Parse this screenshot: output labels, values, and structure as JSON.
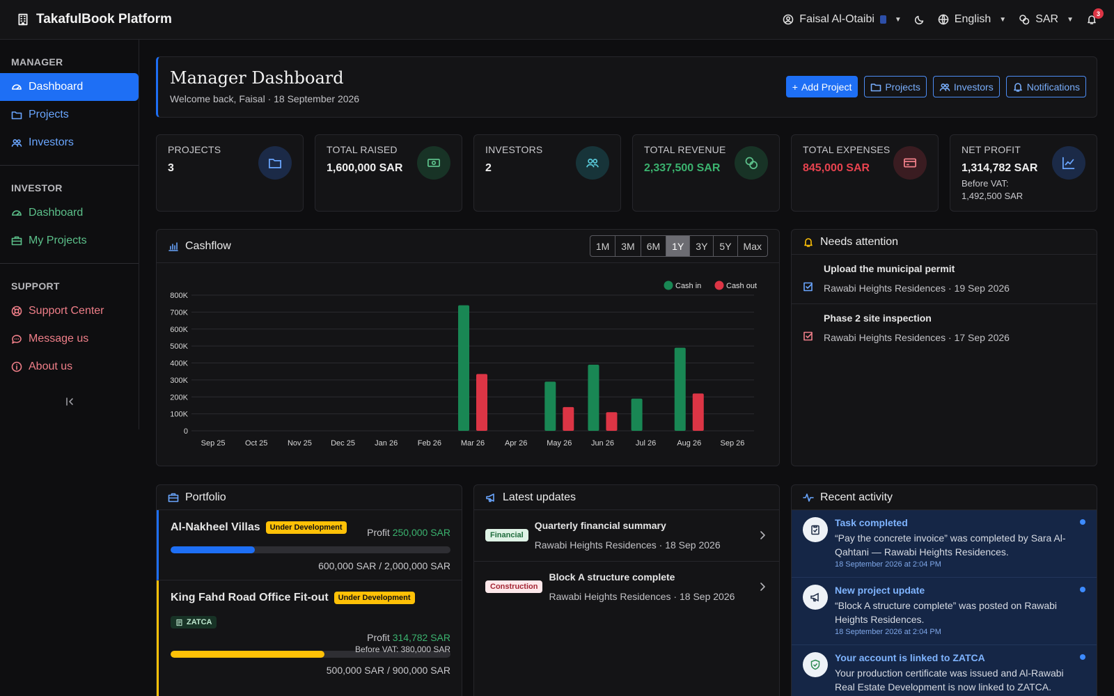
{
  "app": {
    "title": "TakafulBook Platform"
  },
  "topbar": {
    "user": "Faisal Al-Otaibi",
    "language": "English",
    "currency": "SAR",
    "notifications_count": "3"
  },
  "sidebar": {
    "manager_label": "MANAGER",
    "manager_items": [
      {
        "label": "Dashboard"
      },
      {
        "label": "Projects"
      },
      {
        "label": "Investors"
      }
    ],
    "investor_label": "INVESTOR",
    "investor_items": [
      {
        "label": "Dashboard"
      },
      {
        "label": "My Projects"
      }
    ],
    "support_label": "SUPPORT",
    "support_items": [
      {
        "label": "Support Center"
      },
      {
        "label": "Message us"
      },
      {
        "label": "About us"
      }
    ]
  },
  "header": {
    "title": "Manager Dashboard",
    "subtitle": "Welcome back, Faisal · 18 September 2026",
    "buttons": {
      "add_project": "Add Project",
      "projects": "Projects",
      "investors": "Investors",
      "notifications": "Notifications"
    }
  },
  "stats": [
    {
      "label": "PROJECTS",
      "value": "3",
      "icon": "folder-icon"
    },
    {
      "label": "TOTAL RAISED",
      "value": "1,600,000 SAR",
      "icon": "cash-icon"
    },
    {
      "label": "INVESTORS",
      "value": "2",
      "icon": "users-icon"
    },
    {
      "label": "TOTAL REVENUE",
      "value": "2,337,500 SAR",
      "icon": "coins-icon"
    },
    {
      "label": "TOTAL EXPENSES",
      "value": "845,000 SAR",
      "icon": "credit-card-icon"
    },
    {
      "label": "NET PROFIT",
      "value": "1,314,782 SAR",
      "note": "Before VAT: 1,492,500 SAR",
      "icon": "trend-icon"
    }
  ],
  "cashflow": {
    "title": "Cashflow",
    "ranges": [
      "1M",
      "3M",
      "6M",
      "1Y",
      "3Y",
      "5Y",
      "Max"
    ],
    "active_range": "1Y"
  },
  "chart_data": {
    "type": "bar",
    "categories": [
      "Sep 25",
      "Oct 25",
      "Nov 25",
      "Dec 25",
      "Jan 26",
      "Feb 26",
      "Mar 26",
      "Apr 26",
      "May 26",
      "Jun 26",
      "Jul 26",
      "Aug 26",
      "Sep 26"
    ],
    "series": [
      {
        "name": "Cash in",
        "color": "#198754",
        "values": [
          0,
          0,
          0,
          0,
          0,
          0,
          740000,
          0,
          290000,
          390000,
          190000,
          490000,
          0
        ]
      },
      {
        "name": "Cash out",
        "color": "#dc3545",
        "values": [
          0,
          0,
          0,
          0,
          0,
          0,
          335000,
          0,
          140000,
          110000,
          0,
          220000,
          0
        ]
      }
    ],
    "y_ticks": [
      "0",
      "100K",
      "200K",
      "300K",
      "400K",
      "500K",
      "600K",
      "700K",
      "800K"
    ],
    "ylim": [
      0,
      800000
    ],
    "legend": "top-right",
    "grid": true
  },
  "attention": {
    "title": "Needs attention",
    "items": [
      {
        "title": "Upload the municipal permit",
        "meta": "Rawabi Heights Residences · 19 Sep 2026"
      },
      {
        "title": "Phase 2 site inspection",
        "meta": "Rawabi Heights Residences · 17 Sep 2026"
      }
    ]
  },
  "portfolio": {
    "title": "Portfolio",
    "items": [
      {
        "name": "Al-Nakheel Villas",
        "status": "Under Development",
        "profit_label": "Profit",
        "profit": "250,000 SAR",
        "progress": 0.3,
        "amount": "600,000 SAR / 2,000,000 SAR"
      },
      {
        "name": "King Fahd Road Office Fit-out",
        "status": "Under Development",
        "badge": "ZATCA",
        "profit_label": "Profit",
        "profit": "314,782 SAR",
        "before_vat": "Before VAT: 380,000 SAR",
        "progress": 0.55,
        "amount": "500,000 SAR / 900,000 SAR"
      }
    ]
  },
  "updates": {
    "title": "Latest updates",
    "items": [
      {
        "tag": "Financial",
        "title": "Quarterly financial summary",
        "meta": "Rawabi Heights Residences · 18 Sep 2026"
      },
      {
        "tag": "Construction",
        "title": "Block A structure complete",
        "meta": "Rawabi Heights Residences · 18 Sep 2026"
      }
    ]
  },
  "activity": {
    "title": "Recent activity",
    "items": [
      {
        "title": "Task completed",
        "desc": "“Pay the concrete invoice” was completed by Sara Al-Qahtani — Rawabi Heights Residences.",
        "time": "18 September 2026 at 2:04 PM"
      },
      {
        "title": "New project update",
        "desc": "“Block A structure complete” was posted on Rawabi Heights Residences.",
        "time": "18 September 2026 at 2:04 PM"
      },
      {
        "title": "Your account is linked to ZATCA",
        "desc": "Your production certificate was issued and Al-Rawabi Real Estate Development is now linked to ZATCA.",
        "time": ""
      }
    ]
  }
}
